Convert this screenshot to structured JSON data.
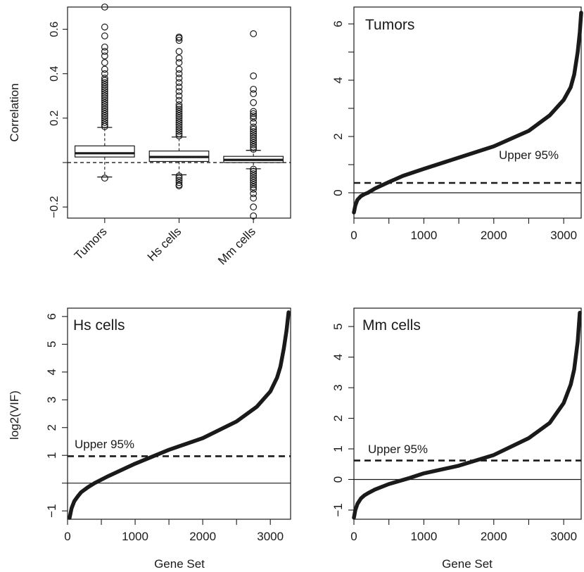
{
  "chart_data": [
    {
      "id": "box",
      "type": "box",
      "ylabel": "Correlation",
      "ylim": [
        -0.25,
        0.7
      ],
      "yticks": [
        -0.2,
        0.0,
        0.2,
        0.4,
        0.6
      ],
      "ytick_labels": [
        "−0.2",
        "",
        "0.2",
        "0.4",
        "0.6"
      ],
      "categories": [
        "Tumors",
        "Hs cells",
        "Mm cells"
      ],
      "reference_line": 0.0,
      "boxes": [
        {
          "q1": 0.025,
          "median": 0.042,
          "q3": 0.075,
          "whisker_low": -0.065,
          "whisker_high": 0.158,
          "outliers_high": [
            0.162,
            0.17,
            0.18,
            0.19,
            0.2,
            0.21,
            0.22,
            0.23,
            0.24,
            0.25,
            0.26,
            0.27,
            0.28,
            0.29,
            0.3,
            0.31,
            0.32,
            0.33,
            0.34,
            0.35,
            0.36,
            0.37,
            0.38,
            0.4,
            0.42,
            0.45,
            0.48,
            0.5,
            0.52,
            0.57,
            0.61,
            0.7
          ],
          "outliers_low": [
            -0.07
          ]
        },
        {
          "q1": 0.005,
          "median": 0.025,
          "q3": 0.052,
          "whisker_low": -0.055,
          "whisker_high": 0.115,
          "outliers_high": [
            0.12,
            0.13,
            0.14,
            0.15,
            0.16,
            0.17,
            0.18,
            0.19,
            0.2,
            0.21,
            0.22,
            0.23,
            0.24,
            0.25,
            0.26,
            0.28,
            0.3,
            0.32,
            0.34,
            0.36,
            0.38,
            0.4,
            0.42,
            0.45,
            0.47,
            0.5,
            0.55,
            0.56,
            0.565
          ],
          "outliers_low": [
            -0.06,
            -0.07,
            -0.08,
            -0.09,
            -0.1,
            -0.105
          ]
        },
        {
          "q1": 0.0,
          "median": 0.012,
          "q3": 0.028,
          "whisker_low": -0.028,
          "whisker_high": 0.055,
          "outliers_high": [
            0.06,
            0.07,
            0.08,
            0.09,
            0.1,
            0.11,
            0.12,
            0.13,
            0.14,
            0.15,
            0.16,
            0.18,
            0.2,
            0.21,
            0.22,
            0.23,
            0.27,
            0.31,
            0.33,
            0.39,
            0.58
          ],
          "outliers_low": [
            -0.03,
            -0.04,
            -0.05,
            -0.06,
            -0.07,
            -0.08,
            -0.09,
            -0.1,
            -0.11,
            -0.12,
            -0.14,
            -0.16,
            -0.2,
            -0.24
          ]
        }
      ]
    },
    {
      "id": "tumors",
      "type": "line",
      "label": "Tumors",
      "xlim": [
        0,
        3250
      ],
      "ylim": [
        -0.9,
        6.6
      ],
      "xticks": [
        0,
        1000,
        2000,
        3000
      ],
      "yticks": [
        0,
        2,
        4,
        6
      ],
      "ytick_minor": [
        1,
        3,
        5
      ],
      "n": 3250,
      "x": [
        0,
        20,
        50,
        100,
        150,
        200,
        300,
        500,
        700,
        1000,
        1500,
        2000,
        2500,
        2800,
        3000,
        3100,
        3150,
        3200,
        3230,
        3250
      ],
      "y": [
        -0.7,
        -0.45,
        -0.25,
        -0.12,
        -0.05,
        0.0,
        0.15,
        0.38,
        0.6,
        0.85,
        1.25,
        1.65,
        2.2,
        2.75,
        3.3,
        3.75,
        4.2,
        5.0,
        5.7,
        6.4
      ],
      "threshold": 0.35,
      "threshold_label": "Upper 95%",
      "baseline": 0
    },
    {
      "id": "hs",
      "type": "line",
      "label": "Hs cells",
      "ylabel": "log2(VIF)",
      "xlabel": "",
      "xlim": [
        0,
        3300
      ],
      "ylim": [
        -1.3,
        6.3
      ],
      "xticks": [
        0,
        1000,
        2000,
        3000
      ],
      "yticks": [
        -1,
        1,
        2,
        3,
        4,
        5,
        6
      ],
      "ytick_labels": [
        "−1",
        "1",
        "2",
        "3",
        "4",
        "5",
        "6"
      ],
      "ytick_minor": [
        0
      ],
      "n": 3270,
      "x": [
        30,
        60,
        100,
        150,
        200,
        300,
        400,
        600,
        1000,
        1500,
        2000,
        2500,
        2800,
        3000,
        3100,
        3150,
        3200,
        3240,
        3270
      ],
      "y": [
        -1.25,
        -0.9,
        -0.65,
        -0.48,
        -0.33,
        -0.15,
        0.0,
        0.25,
        0.7,
        1.2,
        1.62,
        2.22,
        2.75,
        3.3,
        3.8,
        4.2,
        4.85,
        5.5,
        6.15
      ],
      "threshold": 0.97,
      "threshold_label": "Upper 95%",
      "baseline": 0
    },
    {
      "id": "mm",
      "type": "line",
      "label": "Mm cells",
      "xlabel": "",
      "xlim": [
        0,
        3250
      ],
      "ylim": [
        -1.3,
        5.6
      ],
      "xticks": [
        0,
        1000,
        2000,
        3000
      ],
      "yticks": [
        -1,
        0,
        1,
        2,
        3,
        4,
        5
      ],
      "ytick_labels": [
        "−1",
        "0",
        "1",
        "2",
        "3",
        "4",
        "5"
      ],
      "n": 3230,
      "x": [
        0,
        20,
        50,
        100,
        150,
        200,
        300,
        500,
        800,
        1000,
        1500,
        2000,
        2500,
        2800,
        3000,
        3100,
        3150,
        3200,
        3230
      ],
      "y": [
        -1.25,
        -1.0,
        -0.8,
        -0.62,
        -0.52,
        -0.45,
        -0.33,
        -0.15,
        0.05,
        0.2,
        0.45,
        0.8,
        1.35,
        1.85,
        2.5,
        3.1,
        3.6,
        4.5,
        5.45
      ],
      "threshold": 0.62,
      "threshold_label": "Upper 95%",
      "baseline": 0
    }
  ],
  "labels": {
    "correlation": "Correlation",
    "log2vif": "log2(VIF)",
    "gene_set": "Gene Set",
    "tumors": "Tumors",
    "hs": "Hs cells",
    "mm": "Mm cells",
    "upper95": "Upper 95%"
  }
}
